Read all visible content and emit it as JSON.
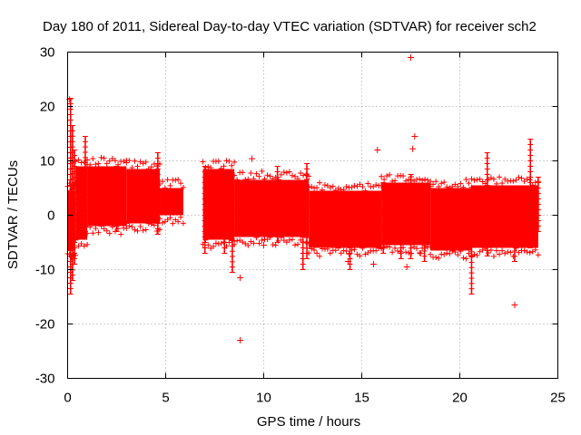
{
  "chart_data": {
    "type": "scatter",
    "title": "Day 180 of 2011, Sidereal Day-to-day VTEC variation (SDTVAR) for receiver sch2",
    "xlabel": "GPS time / hours",
    "ylabel": "SDTVAR / TECUs",
    "xlim": [
      0,
      25
    ],
    "ylim": [
      -30,
      30
    ],
    "xticks": [
      0,
      5,
      10,
      15,
      20,
      25
    ],
    "yticks": [
      -30,
      -20,
      -10,
      0,
      10,
      20,
      30
    ],
    "grid": true,
    "marker": "+",
    "color": "#ff0000",
    "series": [
      {
        "name": "SDTVAR",
        "bands": [
          {
            "x": [
              0.0,
              0.4
            ],
            "low": -6.5,
            "high": 4.5
          },
          {
            "x": [
              0.4,
              1.0
            ],
            "low": -4.5,
            "high": 9.0
          },
          {
            "x": [
              1.0,
              3.0
            ],
            "low": -2.0,
            "high": 9.0
          },
          {
            "x": [
              3.0,
              4.7
            ],
            "low": -1.5,
            "high": 8.5
          },
          {
            "x": [
              4.7,
              5.9
            ],
            "low": 0.0,
            "high": 5.0
          },
          {
            "x": [
              6.9,
              8.5
            ],
            "low": -4.5,
            "high": 8.5
          },
          {
            "x": [
              8.5,
              12.3
            ],
            "low": -4.0,
            "high": 6.5
          },
          {
            "x": [
              12.3,
              16.0
            ],
            "low": -6.0,
            "high": 4.5
          },
          {
            "x": [
              16.0,
              18.5
            ],
            "low": -5.5,
            "high": 6.0
          },
          {
            "x": [
              18.5,
              20.6
            ],
            "low": -6.5,
            "high": 5.0
          },
          {
            "x": [
              20.6,
              24.0
            ],
            "low": -6.0,
            "high": 5.5
          }
        ],
        "spikes": [
          {
            "x": 0.15,
            "low": -14.5,
            "high": 21.5
          },
          {
            "x": 0.25,
            "low": -12.0,
            "high": 16.5
          },
          {
            "x": 0.35,
            "low": -9.0,
            "high": 12.0
          },
          {
            "x": 0.9,
            "low": -3.0,
            "high": 14.5
          },
          {
            "x": 2.5,
            "low": -3.0,
            "high": 9.0
          },
          {
            "x": 4.6,
            "low": -3.5,
            "high": 11.5
          },
          {
            "x": 7.0,
            "low": -7.0,
            "high": 9.0
          },
          {
            "x": 8.0,
            "low": -7.0,
            "high": 7.0
          },
          {
            "x": 8.4,
            "low": -10.5,
            "high": 6.0
          },
          {
            "x": 10.7,
            "low": -5.0,
            "high": 9.0
          },
          {
            "x": 12.0,
            "low": -10.0,
            "high": 5.0
          },
          {
            "x": 12.2,
            "low": -8.0,
            "high": 9.5
          },
          {
            "x": 14.4,
            "low": -10.0,
            "high": 3.0
          },
          {
            "x": 16.1,
            "low": -7.0,
            "high": 6.0
          },
          {
            "x": 17.0,
            "low": -8.0,
            "high": 5.0
          },
          {
            "x": 17.5,
            "low": -8.0,
            "high": 7.5
          },
          {
            "x": 18.2,
            "low": -8.5,
            "high": 4.0
          },
          {
            "x": 20.6,
            "low": -14.5,
            "high": 4.0
          },
          {
            "x": 21.4,
            "low": -7.5,
            "high": 11.5
          },
          {
            "x": 22.8,
            "low": -8.5,
            "high": 4.0
          },
          {
            "x": 23.6,
            "low": -6.0,
            "high": 14.0
          },
          {
            "x": 24.0,
            "low": -3.0,
            "high": 7.0
          }
        ],
        "outliers": [
          [
            0.1,
            21.3
          ],
          [
            9.4,
            10.4
          ],
          [
            8.8,
            -11.5
          ],
          [
            8.8,
            -23.0
          ],
          [
            15.8,
            12.0
          ],
          [
            17.5,
            29.0
          ],
          [
            17.7,
            14.5
          ],
          [
            17.6,
            12.2
          ],
          [
            15.6,
            -9.0
          ],
          [
            22.8,
            -16.5
          ],
          [
            10.0,
            -5.5
          ],
          [
            12.5,
            -5.0
          ],
          [
            14.3,
            -8.5
          ],
          [
            17.3,
            -9.5
          ],
          [
            18.0,
            -7.0
          ]
        ]
      }
    ]
  }
}
